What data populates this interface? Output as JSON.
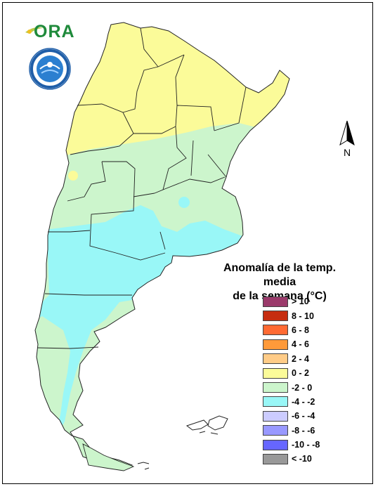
{
  "legend": {
    "title_line1": "Anomalía de la temp. media",
    "title_line2": "de la semana (°C)",
    "items": [
      {
        "label": "> 10",
        "color": "#9b3a6b"
      },
      {
        "label": "8 - 10",
        "color": "#c62d10"
      },
      {
        "label": "6 - 8",
        "color": "#ff6a33"
      },
      {
        "label": "4 - 6",
        "color": "#ff9a3a"
      },
      {
        "label": "2 - 4",
        "color": "#ffcc88"
      },
      {
        "label": "0 - 2",
        "color": "#fbfb99"
      },
      {
        "label": "-2 - 0",
        "color": "#ccf5cc"
      },
      {
        "label": "-4 - -2",
        "color": "#99f7f7"
      },
      {
        "label": "-6 - -4",
        "color": "#ccccff"
      },
      {
        "label": "-8 - -6",
        "color": "#9999ff"
      },
      {
        "label": "-10 - -8",
        "color": "#6666ff"
      },
      {
        "label": "< -10",
        "color": "#999999"
      }
    ]
  },
  "logo": {
    "text": "ORA",
    "icon": "ora-logo-icon"
  },
  "seal": {
    "icon": "smn-seal-icon"
  },
  "north_arrow": {
    "label": "N",
    "icon": "north-arrow-icon"
  },
  "map": {
    "zones": [
      {
        "name": "zone-warm-north",
        "anomaly_class": "0 - 2",
        "color": "#fbfb99"
      },
      {
        "name": "zone-slightly-cool-center",
        "anomaly_class": "-2 - 0",
        "color": "#ccf5cc"
      },
      {
        "name": "zone-cool-south",
        "anomaly_class": "-4 - -2",
        "color": "#99f7f7"
      }
    ]
  }
}
